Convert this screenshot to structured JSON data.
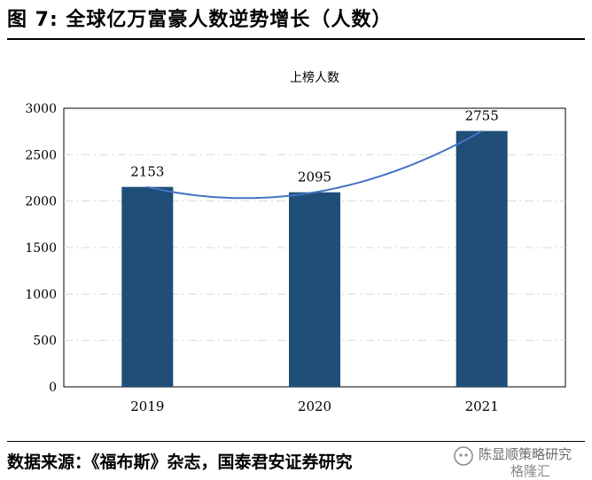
{
  "figure": {
    "title": "图 7: 全球亿万富豪人数逆势增长（人数）",
    "source": "数据来源：《福布斯》杂志，国泰君安证券研究"
  },
  "watermark": {
    "line1": "陈显顺策略研究",
    "line2": "格隆汇"
  },
  "colors": {
    "bar": "#1f4e79",
    "trendline": "#4472c4",
    "grid": "#d9d9d9",
    "axis": "#000000"
  },
  "chart_data": {
    "type": "bar",
    "title": "上榜人数",
    "categories": [
      "2019",
      "2020",
      "2021"
    ],
    "values": [
      2153,
      2095,
      2755
    ],
    "data_labels": [
      "2153",
      "2095",
      "2755"
    ],
    "ylim": [
      0,
      3000
    ],
    "yticks": [
      0,
      500,
      1000,
      1500,
      2000,
      2500,
      3000
    ],
    "grid": true,
    "trendline": "polynomial",
    "xlabel": "",
    "ylabel": ""
  }
}
